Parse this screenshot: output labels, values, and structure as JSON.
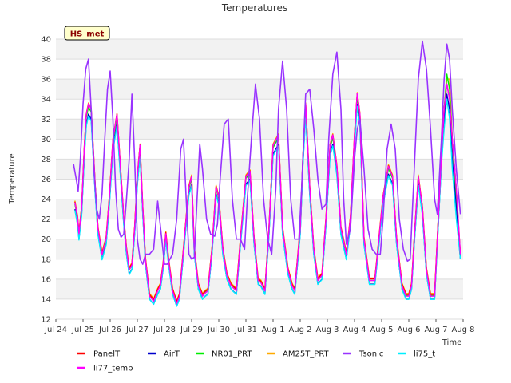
{
  "chart_data": {
    "type": "line",
    "title": "Temperatures",
    "xlabel": "Time",
    "ylabel": "Temperature",
    "badge": "HS_met",
    "ylim": [
      12,
      40
    ],
    "yticks": [
      12,
      14,
      16,
      18,
      20,
      22,
      24,
      26,
      28,
      30,
      32,
      34,
      36,
      38,
      40
    ],
    "xlim": [
      0,
      15
    ],
    "xticks": [
      {
        "x": 0,
        "label": "Jul 24"
      },
      {
        "x": 1,
        "label": "Jul 25"
      },
      {
        "x": 2,
        "label": "Jul 26"
      },
      {
        "x": 3,
        "label": "Jul 27"
      },
      {
        "x": 4,
        "label": "Jul 28"
      },
      {
        "x": 5,
        "label": "Jul 29"
      },
      {
        "x": 6,
        "label": "Jul 30"
      },
      {
        "x": 7,
        "label": "Jul 31"
      },
      {
        "x": 8,
        "label": "Aug 1"
      },
      {
        "x": 9,
        "label": "Aug 2"
      },
      {
        "x": 10,
        "label": "Aug 3"
      },
      {
        "x": 11,
        "label": "Aug 4"
      },
      {
        "x": 12,
        "label": "Aug 5"
      },
      {
        "x": 13,
        "label": "Aug 6"
      },
      {
        "x": 14,
        "label": "Aug 7"
      },
      {
        "x": 15,
        "label": "Aug 8"
      }
    ],
    "base_profile": {
      "x": [
        0.7,
        0.8,
        0.85,
        0.95,
        1.05,
        1.12,
        1.2,
        1.3,
        1.45,
        1.55,
        1.7,
        1.85,
        1.97,
        2.1,
        2.25,
        2.35,
        2.5,
        2.6,
        2.7,
        2.8,
        2.9,
        3.0,
        3.1,
        3.2,
        3.3,
        3.45,
        3.6,
        3.75,
        3.85,
        3.95,
        4.05,
        4.15,
        4.3,
        4.45,
        4.55,
        4.7,
        4.9,
        5.0,
        5.1,
        5.25,
        5.4,
        5.5,
        5.6,
        5.75,
        5.9,
        6.0,
        6.15,
        6.3,
        6.45,
        6.65,
        6.8,
        7.0,
        7.15,
        7.3,
        7.45,
        7.55,
        7.7,
        7.85,
        8.0,
        8.2,
        8.35,
        8.55,
        8.7,
        8.8,
        9.0,
        9.1,
        9.2,
        9.35,
        9.5,
        9.65,
        9.8,
        9.95,
        10.1,
        10.2,
        10.35,
        10.5,
        10.7,
        10.85,
        11.0,
        11.1,
        11.2,
        11.35,
        11.55,
        11.75,
        11.9,
        12.05,
        12.25,
        12.4,
        12.55,
        12.75,
        12.9,
        13.0,
        13.1,
        13.2,
        13.35,
        13.5,
        13.65,
        13.8,
        13.95,
        14.05,
        14.2
      ],
      "y": [
        23.5,
        22.0,
        20.5,
        23.0,
        29.0,
        32.0,
        33.0,
        32.5,
        25.0,
        21.0,
        18.5,
        20.0,
        24.0,
        29.5,
        32.0,
        28.0,
        22.0,
        19.0,
        17.0,
        17.5,
        21.0,
        26.0,
        29.0,
        23.0,
        18.0,
        14.5,
        14.0,
        15.0,
        15.5,
        17.5,
        20.5,
        18.0,
        15.0,
        13.8,
        14.5,
        19.0,
        25.0,
        26.0,
        19.0,
        15.5,
        14.5,
        14.8,
        15.0,
        19.0,
        25.0,
        24.0,
        19.0,
        16.5,
        15.5,
        15.0,
        20.0,
        26.0,
        26.5,
        20.0,
        16.0,
        15.8,
        15.0,
        21.0,
        29.0,
        30.0,
        21.0,
        17.0,
        15.5,
        15.0,
        21.0,
        28.0,
        33.0,
        25.0,
        19.0,
        16.0,
        16.5,
        22.0,
        29.0,
        30.0,
        27.0,
        21.0,
        18.5,
        22.0,
        30.0,
        34.0,
        32.0,
        20.0,
        16.0,
        16.0,
        20.0,
        24.0,
        27.0,
        26.0,
        20.0,
        15.5,
        14.5,
        14.5,
        15.5,
        20.0,
        26.0,
        23.0,
        17.0,
        14.5,
        14.5,
        20.0,
        28.0
      ]
    },
    "tail_profile": {
      "x": [
        14.2,
        14.3,
        14.4,
        14.5,
        14.6,
        14.75,
        14.9
      ],
      "series_y": {
        "PanelT": [
          28.0,
          33.0,
          35.5,
          34.0,
          30.0,
          25.0,
          18.5
        ],
        "AirT": [
          28.0,
          32.0,
          34.5,
          33.0,
          28.0,
          23.0,
          18.0
        ],
        "NR01_PRT": [
          28.0,
          33.0,
          36.5,
          35.0,
          30.0,
          24.0,
          18.3
        ],
        "AM25T_PRT": [
          28.0,
          33.0,
          36.0,
          36.0,
          30.0,
          24.0,
          18.3
        ],
        "Tsonic": [
          30.0,
          36.0,
          39.5,
          38.0,
          33.0,
          27.0,
          22.5
        ],
        "li75_t": [
          26.0,
          31.0,
          34.0,
          32.0,
          27.0,
          22.0,
          18.0
        ],
        "li77_temp": [
          28.0,
          33.0,
          35.5,
          34.0,
          30.0,
          25.0,
          18.5
        ]
      }
    },
    "series": [
      {
        "name": "PanelT",
        "color": "#ff0000",
        "offset": 0.2,
        "scale": 1.03
      },
      {
        "name": "AirT",
        "color": "#0000cc",
        "offset": -0.5,
        "scale": 1.0
      },
      {
        "name": "NR01_PRT",
        "color": "#00ee00",
        "offset": 0.0,
        "scale": 1.02
      },
      {
        "name": "AM25T_PRT",
        "color": "#ffaa00",
        "offset": 0.3,
        "scale": 1.03
      },
      {
        "name": "Tsonic",
        "color": "#9933ff",
        "x": [
          0.65,
          0.75,
          0.82,
          0.9,
          1.0,
          1.1,
          1.2,
          1.3,
          1.4,
          1.5,
          1.6,
          1.7,
          1.8,
          1.9,
          2.0,
          2.1,
          2.2,
          2.3,
          2.4,
          2.5,
          2.6,
          2.7,
          2.8,
          2.9,
          3.0,
          3.1,
          3.2,
          3.3,
          3.45,
          3.6,
          3.75,
          3.9,
          4.0,
          4.1,
          4.2,
          4.3,
          4.45,
          4.6,
          4.7,
          4.8,
          4.9,
          5.0,
          5.1,
          5.2,
          5.3,
          5.4,
          5.55,
          5.7,
          5.85,
          5.95,
          6.05,
          6.2,
          6.35,
          6.5,
          6.65,
          6.8,
          6.95,
          7.05,
          7.2,
          7.35,
          7.5,
          7.65,
          7.8,
          7.95,
          8.1,
          8.2,
          8.35,
          8.5,
          8.65,
          8.8,
          8.95,
          9.05,
          9.2,
          9.35,
          9.5,
          9.65,
          9.8,
          9.95,
          10.05,
          10.2,
          10.35,
          10.5,
          10.6,
          10.7,
          10.85,
          11.0,
          11.1,
          11.2,
          11.35,
          11.5,
          11.65,
          11.8,
          11.95,
          12.05,
          12.2,
          12.35,
          12.5,
          12.65,
          12.8,
          12.95,
          13.05,
          13.2,
          13.35,
          13.5,
          13.65,
          13.8,
          13.95,
          14.05,
          14.2,
          14.3,
          14.4,
          14.5,
          14.6,
          14.75,
          14.9
        ],
        "y": [
          27.5,
          26.0,
          24.8,
          28.0,
          33.5,
          37.0,
          38.0,
          33.0,
          27.0,
          23.0,
          22.0,
          24.5,
          30.0,
          35.0,
          36.8,
          32.0,
          25.0,
          21.0,
          20.2,
          20.5,
          24.0,
          28.0,
          34.5,
          28.0,
          20.0,
          18.0,
          17.5,
          18.5,
          18.5,
          19.0,
          23.8,
          20.0,
          17.5,
          17.5,
          18.0,
          18.5,
          22.0,
          29.0,
          30.0,
          24.0,
          18.5,
          18.0,
          18.2,
          24.0,
          29.5,
          27.0,
          22.0,
          20.5,
          20.3,
          21.5,
          26.0,
          31.5,
          32.0,
          24.0,
          20.0,
          20.0,
          19.0,
          24.0,
          30.0,
          35.5,
          32.0,
          24.0,
          20.0,
          18.5,
          25.0,
          33.0,
          37.8,
          33.0,
          24.0,
          20.0,
          20.0,
          25.0,
          34.5,
          35.0,
          31.0,
          26.0,
          23.0,
          23.5,
          30.0,
          36.5,
          38.7,
          33.0,
          24.0,
          19.5,
          21.0,
          28.0,
          31.0,
          32.0,
          27.0,
          21.0,
          19.0,
          18.5,
          18.5,
          22.0,
          29.0,
          31.5,
          29.0,
          22.0,
          19.0,
          17.8,
          18.0,
          27.0,
          36.0,
          39.8,
          37.0,
          31.0,
          24.0,
          22.5,
          30.0,
          36.0,
          39.5,
          38.0,
          33.0,
          27.0,
          22.5
        ]
      },
      {
        "name": "li75_t",
        "color": "#00eeff",
        "offset": -0.6,
        "scale": 0.99
      },
      {
        "name": "li77_temp",
        "color": "#ff00ff",
        "offset": 0.1,
        "scale": 1.04
      }
    ],
    "legend": {
      "placement": "bottom"
    }
  }
}
